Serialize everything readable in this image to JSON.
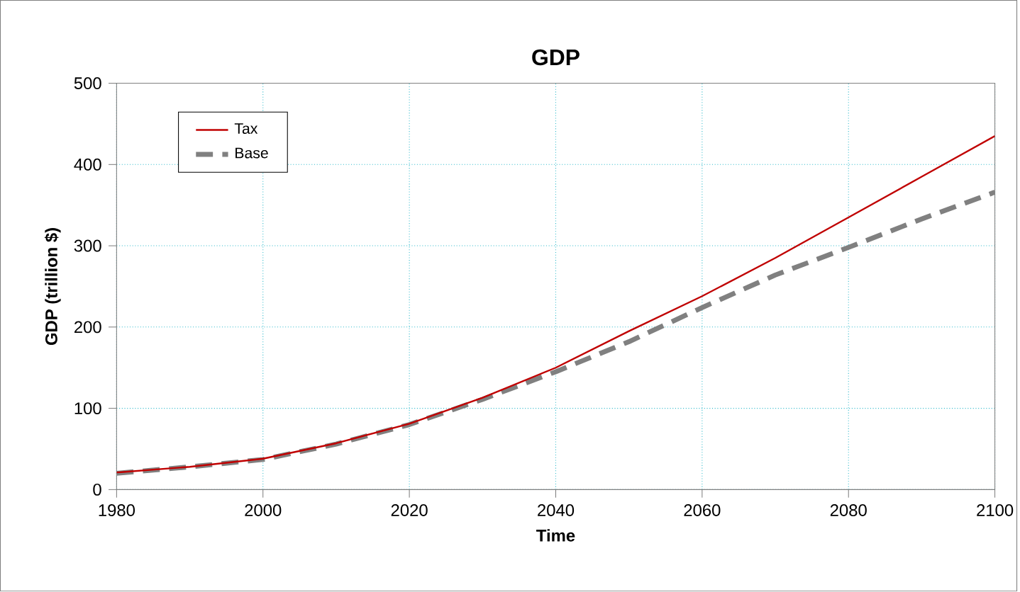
{
  "chart_data": {
    "type": "line",
    "title": "GDP",
    "xlabel": "Time",
    "ylabel": "GDP (trillion $)",
    "x": [
      1980,
      1990,
      2000,
      2010,
      2020,
      2030,
      2040,
      2050,
      2060,
      2070,
      2080,
      2090,
      2100
    ],
    "series": [
      {
        "name": "Tax",
        "color": "#c00000",
        "line_style": "solid",
        "values": [
          21,
          28,
          38,
          57,
          81,
          113,
          150,
          195,
          238,
          285,
          335,
          385,
          435
        ]
      },
      {
        "name": "Base",
        "color": "#808080",
        "line_style": "dashed",
        "values": [
          20,
          28,
          37,
          56,
          80,
          111,
          145,
          182,
          224,
          264,
          298,
          333,
          366
        ]
      }
    ],
    "xlim": [
      1980,
      2100
    ],
    "ylim": [
      0,
      500
    ],
    "xticks": [
      1980,
      2000,
      2020,
      2040,
      2060,
      2080,
      2100
    ],
    "yticks": [
      0,
      100,
      200,
      300,
      400,
      500
    ],
    "grid": true,
    "legend": "top left",
    "marker": "none"
  }
}
